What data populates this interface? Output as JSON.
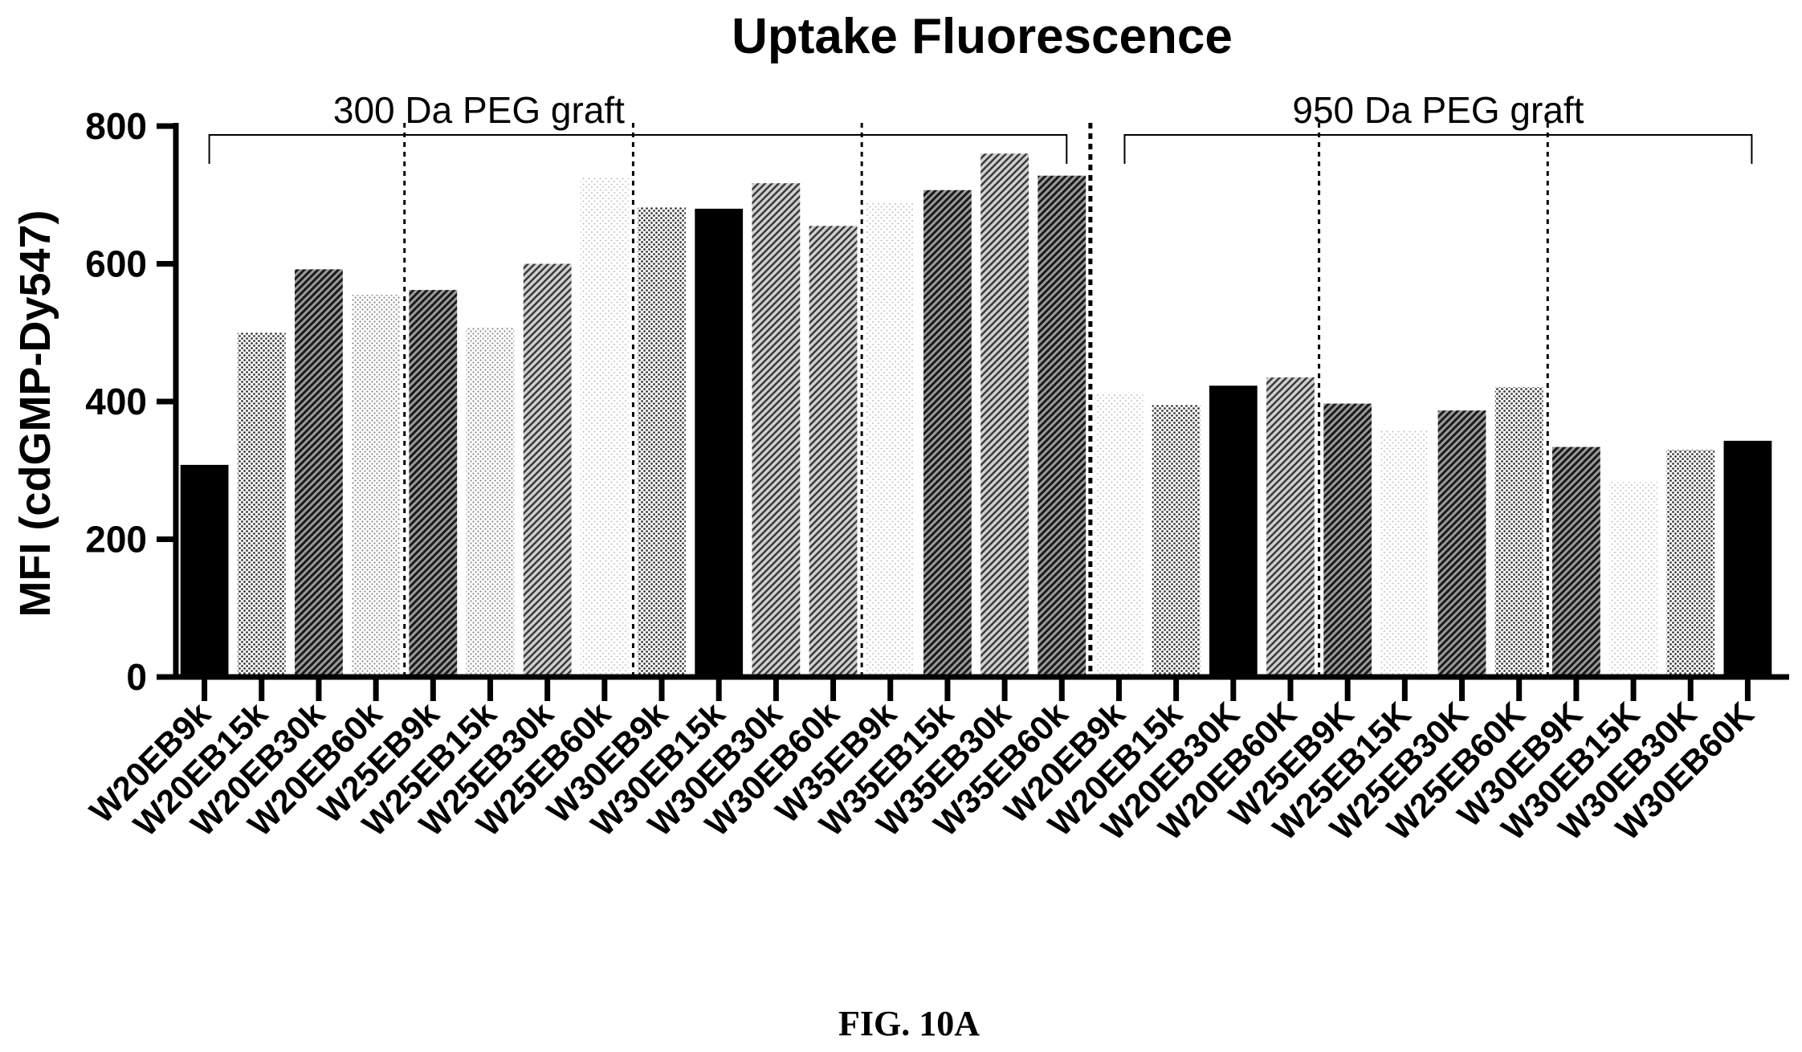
{
  "caption": "FIG. 10A",
  "chart_data": {
    "type": "bar",
    "title": "Uptake Fluorescence",
    "xlabel": "",
    "ylabel": "MFI  (cdGMP-Dy547)",
    "ylim": [
      0,
      800
    ],
    "yticks": [
      "0",
      "200",
      "400",
      "600",
      "800"
    ],
    "grid": false,
    "categories": [
      "W20EB9k",
      "W20EB15k",
      "W20EB30k",
      "W20EB60k",
      "W25EB9k",
      "W25EB15k",
      "W25EB30k",
      "W25EB60k",
      "W30EB9k",
      "W30EB15k",
      "W30EB30k",
      "W30EB60k",
      "W35EB9k",
      "W35EB15k",
      "W35EB30k",
      "W35EB60k",
      "W20EB9k",
      "W20EB15k",
      "W20EB30K",
      "W20EB60K",
      "W25EB9K",
      "W25EB15K",
      "W25EB30K",
      "W25EB60K",
      "W30EB9K",
      "W30EB15K",
      "W30EB30K",
      "W30EB60K"
    ],
    "values": [
      308,
      500,
      592,
      555,
      562,
      508,
      600,
      725,
      682,
      680,
      717,
      655,
      688,
      707,
      760,
      728,
      413,
      395,
      423,
      435,
      397,
      358,
      387,
      421,
      334,
      283,
      330,
      343
    ],
    "fills": [
      "#000000",
      "pat-dots-dense",
      "pat-diag-dark",
      "pat-dots-light",
      "pat-diag-dark",
      "pat-dots-light",
      "pat-diag-mid",
      "pat-dots-sparse",
      "pat-dots-dense",
      "#000000",
      "pat-diag-mid",
      "pat-diag-mid",
      "pat-dots-sparse",
      "pat-diag-dark",
      "pat-diag-mid",
      "pat-diag-dark",
      "pat-dots-sparse",
      "pat-dots-dense",
      "#000000",
      "pat-diag-mid",
      "pat-diag-dark",
      "pat-dots-sparse",
      "pat-diag-dark",
      "pat-dots-dense",
      "pat-diag-dark",
      "pat-dots-sparse",
      "pat-dots-dense",
      "#000000"
    ],
    "groups": [
      {
        "label": "300 Da PEG graft",
        "first": 0,
        "last": 15
      },
      {
        "label": "950 Da PEG graft",
        "first": 16,
        "last": 27
      }
    ],
    "dividers_after": [
      3,
      7,
      11,
      15,
      19,
      23
    ]
  }
}
